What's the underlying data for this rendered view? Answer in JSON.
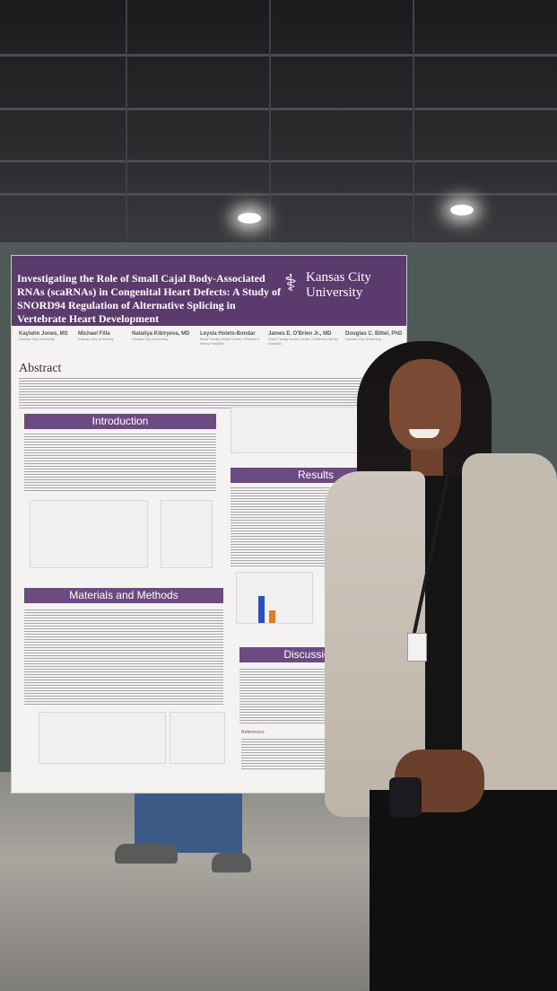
{
  "poster": {
    "title": "Investigating the Role of Small Cajal Body-Associated RNAs (scaRNAs) in Congenital Heart Defects: A Study of SNORD94 Regulation of Alternative Splicing in Vertebrate Heart Development",
    "institution": "Kansas City University",
    "logo_icon": "caduceus-icon",
    "authors": [
      {
        "name": "Kaylahn Jones, MS",
        "affiliation": "Kansas City University"
      },
      {
        "name": "Michael Filla",
        "affiliation": "Kansas City University"
      },
      {
        "name": "Nataliya Kibiryeva, MD",
        "affiliation": "Kansas City University"
      },
      {
        "name": "Leysla Holets-Bondar",
        "affiliation": "Ward Family Heart Center, Children's Mercy Hospital"
      },
      {
        "name": "James E. O'Brien Jr., MD",
        "affiliation": "Ward Family Heart Center, Children's Mercy Hospital"
      },
      {
        "name": "Douglas C. Bittel, PhD",
        "affiliation": "Kansas City University"
      }
    ],
    "sections": {
      "abstract": "Abstract",
      "introduction": "Introduction",
      "materials": "Materials and Methods",
      "results": "Results",
      "discussion": "Discussion and",
      "references": "References"
    },
    "colors": {
      "header": "#5b3a6e",
      "section": "#6c4a82",
      "background": "#f4f3f1"
    }
  }
}
